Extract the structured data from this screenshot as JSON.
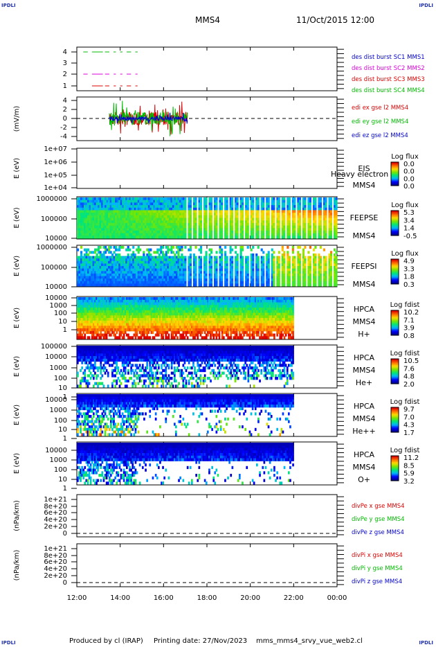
{
  "corners": {
    "tl": "IPDLI",
    "tr": "IPDLI",
    "bl": "IPDLI",
    "br": "IPDLI"
  },
  "header": {
    "spacecraft": "MMS4",
    "date": "11/Oct/2015 12:00"
  },
  "footer": {
    "produced_by": "Produced by cl (IRAP)",
    "printing_date": "Printing date: 27/Nov/2023",
    "file": "mms_mms4_srvy_vue_web2.cl"
  },
  "time_axis": {
    "ticks": [
      "12:00",
      "14:00",
      "16:00",
      "18:00",
      "20:00",
      "22:00",
      "00:00"
    ],
    "range_hours": [
      12,
      24
    ]
  },
  "colors": {
    "red": "#dd0000",
    "magenta": "#dd00dd",
    "green": "#00bb00",
    "blue": "#0000cc"
  },
  "chart_data": [
    {
      "type": "line",
      "panel": "burst",
      "ylabel": "",
      "yticks": [
        "4",
        "3",
        "2",
        "1"
      ],
      "series": [
        {
          "name": "des dist burst SC1 MMS1",
          "color": "#0000cc",
          "level": 4
        },
        {
          "name": "des dist burst SC2 MMS2",
          "color": "#dd00dd",
          "level": 2
        },
        {
          "name": "des dist burst SC3 MMS3",
          "color": "#dd0000",
          "level": 1
        },
        {
          "name": "des dist burst SC4 MMS4",
          "color": "#00bb00",
          "level": 4
        }
      ],
      "segments_hours": [
        [
          12.3,
          12.5
        ],
        [
          12.7,
          13.2
        ],
        [
          13.3,
          13.5
        ],
        [
          13.7,
          13.8
        ],
        [
          14.0,
          14.1
        ],
        [
          14.3,
          14.5
        ],
        [
          14.7,
          14.8
        ]
      ]
    },
    {
      "type": "line",
      "panel": "edl",
      "ylabel": "(mV/m)",
      "yticks": [
        "4",
        "2",
        "0",
        "-2",
        "-4"
      ],
      "ylim": [
        -4,
        4
      ],
      "series": [
        {
          "name": "edi ex gse l2 MMS4",
          "color": "#dd0000"
        },
        {
          "name": "edi ey gse l2 MMS4",
          "color": "#00bb00"
        },
        {
          "name": "edi ez gse l2 MMS4",
          "color": "#0000cc"
        }
      ],
      "data_range_hours": [
        13.5,
        17.1
      ]
    },
    {
      "type": "heatmap",
      "panel": "EIS",
      "ylabel": "E (eV)",
      "yticks": [
        "1e+07",
        "1e+06",
        "1e+05",
        "1e+04"
      ],
      "labels": [
        "EIS",
        "MMS4"
      ],
      "overlay_text": "Heavy electron to",
      "cbar_title": "Log flux",
      "cbar_ticks": [
        "0.0",
        "0.0",
        "0.0",
        "0.0"
      ]
    },
    {
      "type": "heatmap",
      "panel": "FEEPSE",
      "ylabel": "E (eV)",
      "yticks": [
        "1000000",
        "100000",
        "10000"
      ],
      "labels": [
        "FEEPSE",
        "MMS4"
      ],
      "cbar_title": "Log flux",
      "cbar_ticks": [
        "5.3",
        "3.4",
        "1.4",
        "-0.5"
      ]
    },
    {
      "type": "heatmap",
      "panel": "FEEPSI",
      "ylabel": "E (eV)",
      "yticks": [
        "1000000",
        "100000",
        "10000"
      ],
      "labels": [
        "FEEPSI",
        "MMS4"
      ],
      "cbar_title": "Log flux",
      "cbar_ticks": [
        "4.9",
        "3.3",
        "1.8",
        "0.3"
      ]
    },
    {
      "type": "heatmap",
      "panel": "HPCA H+",
      "ylabel": "E (eV)",
      "yticks": [
        "10000",
        "1000",
        "100",
        "10",
        "1"
      ],
      "labels": [
        "HPCA",
        "MMS4",
        "H+"
      ],
      "cbar_title": "Log fdist",
      "cbar_ticks": [
        "10.2",
        "7.1",
        "3.9",
        "0.8"
      ]
    },
    {
      "type": "heatmap",
      "panel": "HPCA He+",
      "ylabel": "E (eV)",
      "yticks": [
        "100000",
        "10000",
        "1000",
        "100",
        "10",
        "1"
      ],
      "labels": [
        "HPCA",
        "MMS4",
        "He+"
      ],
      "cbar_title": "Log fdist",
      "cbar_ticks": [
        "10.5",
        "7.6",
        "4.8",
        "2.0"
      ]
    },
    {
      "type": "heatmap",
      "panel": "HPCA He++",
      "ylabel": "E (eV)",
      "yticks": [
        "10000",
        "1000",
        "100",
        "10",
        "1"
      ],
      "labels": [
        "HPCA",
        "MMS4",
        "He++"
      ],
      "cbar_title": "Log fdist",
      "cbar_ticks": [
        "9.7",
        "7.0",
        "4.3",
        "1.7"
      ]
    },
    {
      "type": "heatmap",
      "panel": "HPCA O+",
      "ylabel": "E (eV)",
      "yticks": [
        "10000",
        "1000",
        "100",
        "10",
        "1"
      ],
      "labels": [
        "HPCA",
        "MMS4",
        "O+"
      ],
      "cbar_title": "Log fdist",
      "cbar_ticks": [
        "11.2",
        "8.5",
        "5.9",
        "3.2"
      ]
    },
    {
      "type": "line",
      "panel": "divPe",
      "ylabel": "(nPa/km)",
      "yticks": [
        "1e+21",
        "8e+20",
        "6e+20",
        "4e+20",
        "2e+20",
        "0"
      ],
      "series": [
        {
          "name": "divPe x gse MMS4",
          "color": "#dd0000"
        },
        {
          "name": "divPe y gse MMS4",
          "color": "#00bb00"
        },
        {
          "name": "divPe z gse MMS4",
          "color": "#0000cc"
        }
      ]
    },
    {
      "type": "line",
      "panel": "divPi",
      "ylabel": "(nPa/km)",
      "yticks": [
        "1e+21",
        "8e+20",
        "6e+20",
        "4e+20",
        "2e+20",
        "0"
      ],
      "series": [
        {
          "name": "divPi x gse MMS4",
          "color": "#dd0000"
        },
        {
          "name": "divPi y gse MMS4",
          "color": "#00bb00"
        },
        {
          "name": "divPi z gse MMS4",
          "color": "#0000cc"
        }
      ]
    }
  ]
}
